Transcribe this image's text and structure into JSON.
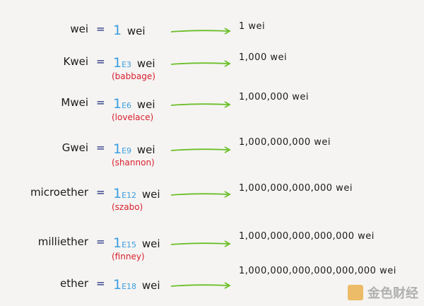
{
  "colors": {
    "exponent": "#3a9ee0",
    "nickname": "#d8202e",
    "arrow": "#6cbf2a",
    "equals": "#1c2a7a"
  },
  "rows": [
    {
      "unit": "wei",
      "eq": "=",
      "coef": "1",
      "exp": "",
      "base": "wei",
      "nickname": "",
      "result": "1 wei"
    },
    {
      "unit": "Kwei",
      "eq": "=",
      "coef": "1",
      "exp": "E3",
      "base": "wei",
      "nickname": "(babbage)",
      "result": "1,000 wei"
    },
    {
      "unit": "Mwei",
      "eq": "=",
      "coef": "1",
      "exp": "E6",
      "base": "wei",
      "nickname": "(lovelace)",
      "result": "1,000,000 wei"
    },
    {
      "unit": "Gwei",
      "eq": "=",
      "coef": "1",
      "exp": "E9",
      "base": "wei",
      "nickname": "(shannon)",
      "result": "1,000,000,000 wei"
    },
    {
      "unit": "microether",
      "eq": "=",
      "coef": "1",
      "exp": "E12",
      "base": "wei",
      "nickname": "(szabo)",
      "result": "1,000,000,000,000 wei"
    },
    {
      "unit": "milliether",
      "eq": "=",
      "coef": "1",
      "exp": "E15",
      "base": "wei",
      "nickname": "(finney)",
      "result": "1,000,000,000,000,000 wei"
    },
    {
      "unit": "ether",
      "eq": "=",
      "coef": "1",
      "exp": "E18",
      "base": "wei",
      "nickname": "",
      "result": "1,000,000,000,000,000,000 wei"
    }
  ],
  "watermark": {
    "text": "金色财经"
  }
}
